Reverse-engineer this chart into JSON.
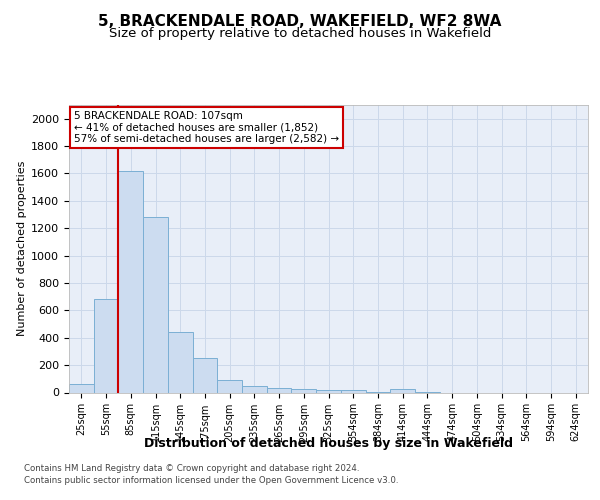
{
  "title": "5, BRACKENDALE ROAD, WAKEFIELD, WF2 8WA",
  "subtitle": "Size of property relative to detached houses in Wakefield",
  "xlabel": "Distribution of detached houses by size in Wakefield",
  "ylabel": "Number of detached properties",
  "categories": [
    "25sqm",
    "55sqm",
    "85sqm",
    "115sqm",
    "145sqm",
    "175sqm",
    "205sqm",
    "235sqm",
    "265sqm",
    "295sqm",
    "325sqm",
    "354sqm",
    "384sqm",
    "414sqm",
    "444sqm",
    "474sqm",
    "504sqm",
    "534sqm",
    "564sqm",
    "594sqm",
    "624sqm"
  ],
  "values": [
    65,
    680,
    1620,
    1280,
    440,
    250,
    90,
    50,
    30,
    25,
    20,
    15,
    5,
    25,
    5,
    0,
    0,
    0,
    0,
    0,
    0
  ],
  "bar_color": "#ccdcf0",
  "bar_edge_color": "#7bafd4",
  "highlight_bar_index": 2,
  "vline_color": "#cc0000",
  "ylim": [
    0,
    2100
  ],
  "yticks": [
    0,
    200,
    400,
    600,
    800,
    1000,
    1200,
    1400,
    1600,
    1800,
    2000
  ],
  "annotation_text": "5 BRACKENDALE ROAD: 107sqm\n← 41% of detached houses are smaller (1,852)\n57% of semi-detached houses are larger (2,582) →",
  "annotation_box_color": "#ffffff",
  "annotation_box_edge": "#cc0000",
  "footer_line1": "Contains HM Land Registry data © Crown copyright and database right 2024.",
  "footer_line2": "Contains public sector information licensed under the Open Government Licence v3.0.",
  "grid_color": "#ccd8ea",
  "background_color": "#e8eef8",
  "fig_background": "#ffffff",
  "title_fontsize": 11,
  "subtitle_fontsize": 9.5
}
